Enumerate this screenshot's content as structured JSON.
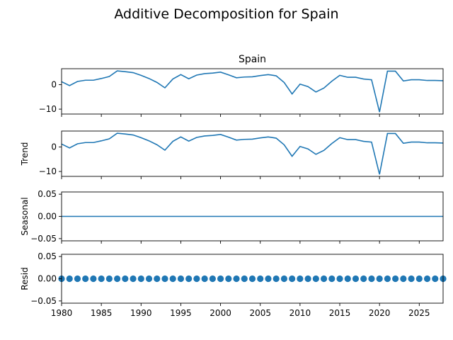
{
  "suptitle": "Additive Decomposition for Spain",
  "colors": {
    "line": "#1f77b4",
    "axis": "#000000"
  },
  "chart_data": {
    "type": "line",
    "title": "Additive Decomposition for Spain",
    "x": [
      1980,
      1981,
      1982,
      1983,
      1984,
      1985,
      1986,
      1987,
      1988,
      1989,
      1990,
      1991,
      1992,
      1993,
      1994,
      1995,
      1996,
      1997,
      1998,
      1999,
      2000,
      2001,
      2002,
      2003,
      2004,
      2005,
      2006,
      2007,
      2008,
      2009,
      2010,
      2011,
      2012,
      2013,
      2014,
      2015,
      2016,
      2017,
      2018,
      2019,
      2020,
      2021,
      2022,
      2023,
      2024,
      2025,
      2026,
      2027,
      2028
    ],
    "xlim": [
      1980,
      2028
    ],
    "xticks": [
      "1980",
      "1985",
      "1990",
      "1995",
      "2000",
      "2005",
      "2010",
      "2015",
      "2020",
      "2025"
    ],
    "panels": [
      {
        "name": "observed",
        "title": "Spain",
        "ylabel": "",
        "ylim": [
          -12,
          6.5
        ],
        "yticks": [
          "0",
          "−10"
        ],
        "ytick_values": [
          0,
          -10
        ],
        "style": "line",
        "values": [
          1.2,
          -0.4,
          1.3,
          1.8,
          1.8,
          2.5,
          3.3,
          5.6,
          5.3,
          4.9,
          3.8,
          2.5,
          0.9,
          -1.3,
          2.3,
          4.1,
          2.4,
          3.9,
          4.5,
          4.7,
          5.1,
          4.0,
          2.8,
          3.1,
          3.2,
          3.7,
          4.1,
          3.6,
          0.9,
          -3.8,
          0.2,
          -0.8,
          -3.0,
          -1.4,
          1.4,
          3.8,
          3.0,
          3.0,
          2.3,
          2.0,
          -11.2,
          5.5,
          5.5,
          1.5,
          2.0,
          2.0,
          1.7,
          1.7,
          1.6
        ]
      },
      {
        "name": "trend",
        "title": "",
        "ylabel": "Trend",
        "ylim": [
          -12,
          6.5
        ],
        "yticks": [
          "0",
          "−10"
        ],
        "ytick_values": [
          0,
          -10
        ],
        "style": "line",
        "values": [
          1.2,
          -0.4,
          1.3,
          1.8,
          1.8,
          2.5,
          3.3,
          5.6,
          5.3,
          4.9,
          3.8,
          2.5,
          0.9,
          -1.3,
          2.3,
          4.1,
          2.4,
          3.9,
          4.5,
          4.7,
          5.1,
          4.0,
          2.8,
          3.1,
          3.2,
          3.7,
          4.1,
          3.6,
          0.9,
          -3.8,
          0.2,
          -0.8,
          -3.0,
          -1.4,
          1.4,
          3.8,
          3.0,
          3.0,
          2.3,
          2.0,
          -11.2,
          5.5,
          5.5,
          1.5,
          2.0,
          2.0,
          1.7,
          1.7,
          1.6
        ]
      },
      {
        "name": "seasonal",
        "title": "",
        "ylabel": "Seasonal",
        "ylim": [
          -0.055,
          0.055
        ],
        "yticks": [
          "0.05",
          "0.00",
          "−0.05"
        ],
        "ytick_values": [
          0.05,
          0,
          -0.05
        ],
        "style": "line",
        "values": [
          0,
          0,
          0,
          0,
          0,
          0,
          0,
          0,
          0,
          0,
          0,
          0,
          0,
          0,
          0,
          0,
          0,
          0,
          0,
          0,
          0,
          0,
          0,
          0,
          0,
          0,
          0,
          0,
          0,
          0,
          0,
          0,
          0,
          0,
          0,
          0,
          0,
          0,
          0,
          0,
          0,
          0,
          0,
          0,
          0,
          0,
          0,
          0,
          0
        ]
      },
      {
        "name": "resid",
        "title": "",
        "ylabel": "Resid",
        "ylim": [
          -0.055,
          0.055
        ],
        "yticks": [
          "0.05",
          "0.00",
          "−0.05"
        ],
        "ytick_values": [
          0.05,
          0,
          -0.05
        ],
        "style": "scatter",
        "values": [
          0,
          0,
          0,
          0,
          0,
          0,
          0,
          0,
          0,
          0,
          0,
          0,
          0,
          0,
          0,
          0,
          0,
          0,
          0,
          0,
          0,
          0,
          0,
          0,
          0,
          0,
          0,
          0,
          0,
          0,
          0,
          0,
          0,
          0,
          0,
          0,
          0,
          0,
          0,
          0,
          0,
          0,
          0,
          0,
          0,
          0,
          0,
          0,
          0
        ]
      }
    ]
  }
}
